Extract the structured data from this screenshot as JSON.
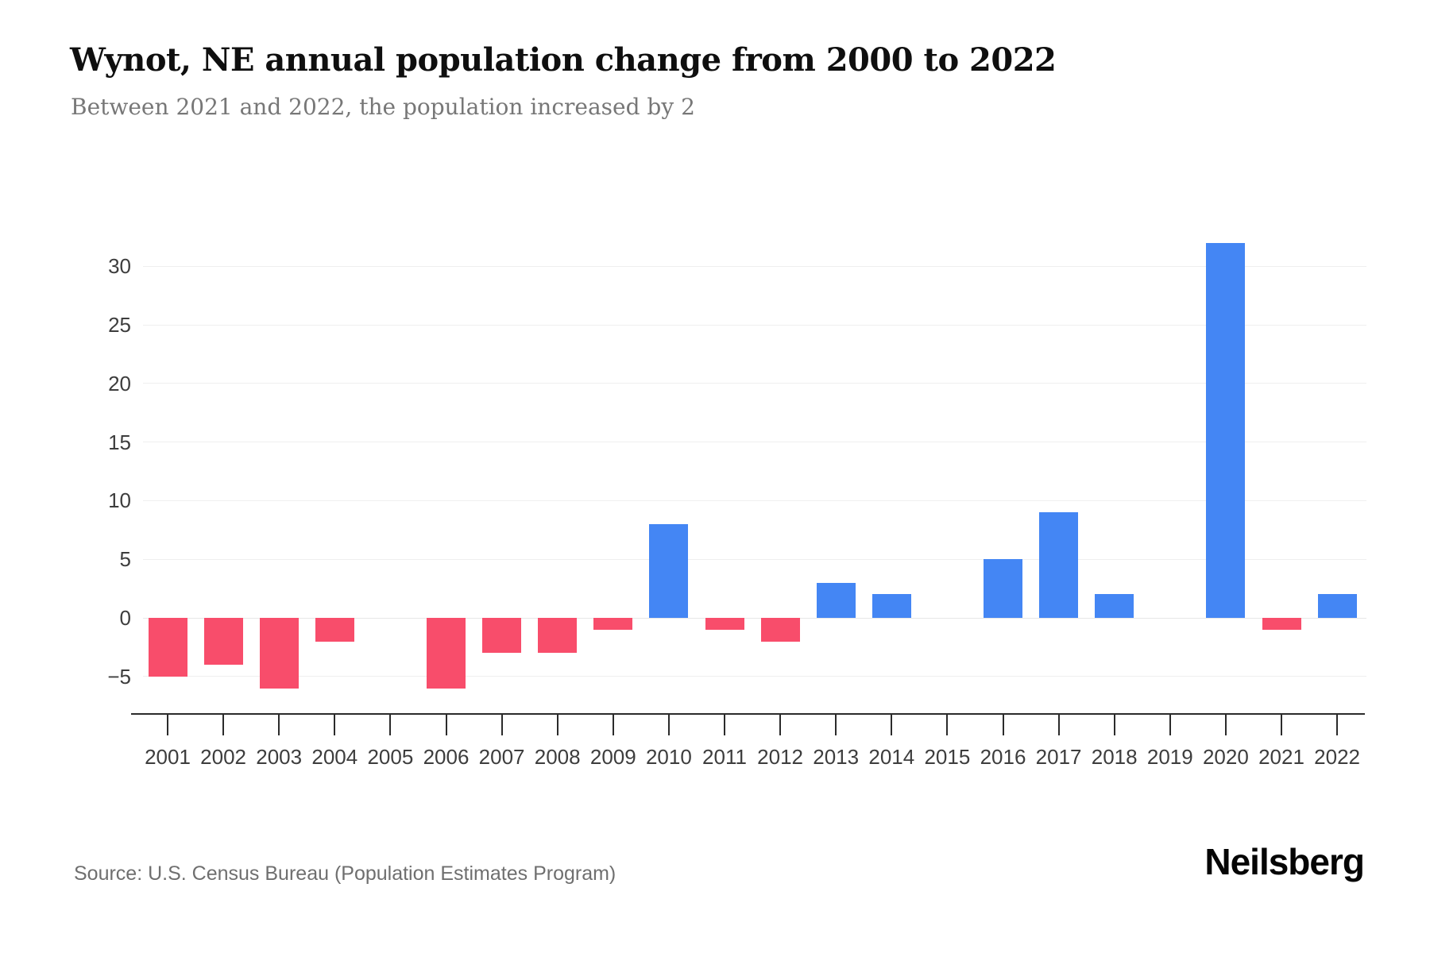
{
  "header": {
    "title": "Wynot, NE annual population change from 2000 to 2022",
    "subtitle": "Between 2021 and 2022, the population increased by 2"
  },
  "chart_data": {
    "type": "bar",
    "title": "Wynot, NE annual population change from 2000 to 2022",
    "categories": [
      "2001",
      "2002",
      "2003",
      "2004",
      "2005",
      "2006",
      "2007",
      "2008",
      "2009",
      "2010",
      "2011",
      "2012",
      "2013",
      "2014",
      "2015",
      "2016",
      "2017",
      "2018",
      "2019",
      "2020",
      "2021",
      "2022"
    ],
    "values": [
      -5,
      -4,
      -6,
      -2,
      0,
      -6,
      -3,
      -3,
      -1,
      8,
      -1,
      -2,
      3,
      2,
      0,
      5,
      9,
      2,
      0,
      32,
      -1,
      2
    ],
    "xlabel": "",
    "ylabel": "",
    "yticks": [
      30,
      25,
      20,
      15,
      10,
      5,
      0,
      -5
    ],
    "ylim": [
      -8,
      35
    ],
    "grid": true,
    "legend": "none",
    "colors": {
      "positive": "#4486F4",
      "negative": "#F84D6B",
      "gridline": "#efefef",
      "zeroline": "#e7e7e7",
      "axis": "#2b2b2b"
    }
  },
  "footer": {
    "source": "Source: U.S. Census Bureau (Population Estimates Program)",
    "brand": "Neilsberg"
  }
}
